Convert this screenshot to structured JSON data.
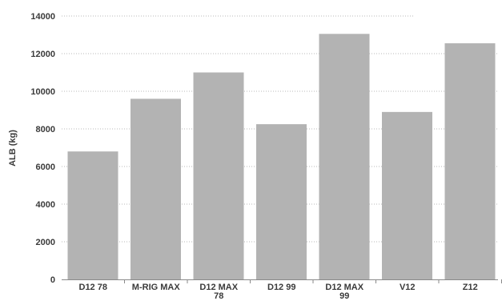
{
  "chart_data": {
    "type": "bar",
    "title": "",
    "xlabel": "",
    "ylabel": "ALB (kg)",
    "categories": [
      [
        "D12 78"
      ],
      [
        "M-RIG MAX"
      ],
      [
        "D12 MAX",
        "78"
      ],
      [
        "D12 99"
      ],
      [
        "D12 MAX",
        "99"
      ],
      [
        "V12"
      ],
      [
        "Z12"
      ]
    ],
    "values": [
      6800,
      9600,
      11000,
      8250,
      13050,
      8900,
      12550
    ],
    "ylim": [
      0,
      14000
    ],
    "yticks": [
      0,
      2000,
      4000,
      6000,
      8000,
      10000,
      12000,
      14000
    ],
    "grid": true,
    "legend": "none",
    "colors": {
      "bar": "#b3b3b3",
      "grid": "#b8b8b8",
      "axis": "#8a8a8a",
      "text": "#3a3a3a"
    }
  }
}
